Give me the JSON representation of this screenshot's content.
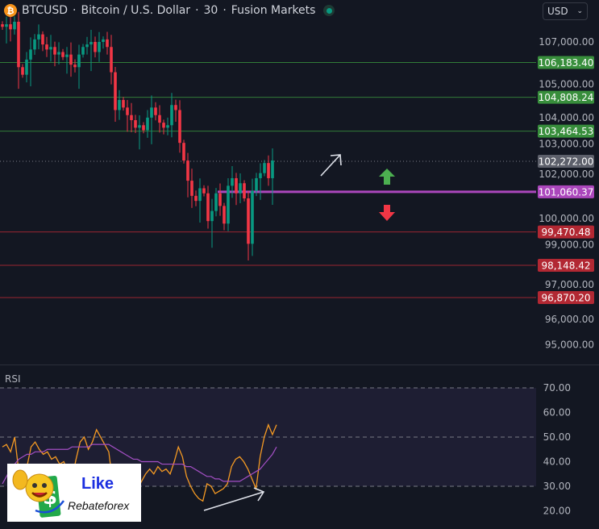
{
  "header": {
    "symbol": "BTCUSD",
    "name": "Bitcoin / U.S. Dollar",
    "interval": "30",
    "broker": "Fusion Markets",
    "separator": "·",
    "coin_icon": "bitcoin-icon",
    "status": "market-open-dot"
  },
  "currency_select": {
    "value": "USD"
  },
  "rsi_panel": {
    "label": "RSI"
  },
  "logo": {
    "line1": "Like",
    "line2": "Rebateforex"
  },
  "colors": {
    "up": "#089981",
    "down": "#f23645",
    "resistance": "#388e3c",
    "support": "#b22833",
    "pivot": "#ab47bc",
    "rsi": "#f59a23",
    "rsi_ma": "#a34fc4",
    "last": "#5d606b"
  },
  "chart_data": [
    {
      "type": "candlestick",
      "title": "BTCUSD · Bitcoin / U.S. Dollar · 30 · Fusion Markets",
      "ylim": [
        94500,
        108300
      ],
      "y_ticks": [
        "107,000.00",
        "105,000.00",
        "104,000.00",
        "103,000.00",
        "102,000.00",
        "100,000.00",
        "99,000.00",
        "97,000.00",
        "96,000.00",
        "95,000.00"
      ],
      "y_tick_values": [
        107000,
        105000,
        104000,
        103000,
        102000,
        100000,
        99000,
        97000,
        96000,
        95000
      ],
      "closes": [
        107600,
        107700,
        107500,
        107800,
        106000,
        105700,
        106300,
        106700,
        107100,
        107300,
        106900,
        106700,
        106800,
        106500,
        106600,
        106400,
        106500,
        106100,
        106000,
        106500,
        106800,
        106900,
        107000,
        106600,
        107000,
        107100,
        106800,
        105800,
        104300,
        104700,
        104400,
        104100,
        103900,
        103600,
        103700,
        103500,
        104000,
        104400,
        104100,
        103800,
        103600,
        103700,
        104500,
        104300,
        103000,
        102300,
        101500,
        100900,
        100700,
        101200,
        101000,
        99900,
        100300,
        101000,
        100500,
        99800,
        101300,
        101600,
        101000,
        101400,
        100800,
        99000,
        101100,
        101600,
        101800,
        102200,
        101600,
        102300
      ],
      "levels": [
        {
          "value": 106183.4,
          "label": "106,183.40",
          "kind": "resistance"
        },
        {
          "value": 104808.24,
          "label": "104,808.24",
          "kind": "resistance"
        },
        {
          "value": 103464.53,
          "label": "103,464.53",
          "kind": "resistance"
        },
        {
          "value": 102272.0,
          "label": "102,272.00",
          "kind": "last"
        },
        {
          "value": 101060.37,
          "label": "101,060.37",
          "kind": "pivot"
        },
        {
          "value": 99470.48,
          "label": "99,470.48",
          "kind": "support"
        },
        {
          "value": 98148.42,
          "label": "98,148.42",
          "kind": "support"
        },
        {
          "value": 96870.2,
          "label": "96,870.20",
          "kind": "support"
        }
      ],
      "annotations": [
        "arrow-up-right",
        "green-up-arrow",
        "red-down-arrow"
      ]
    },
    {
      "type": "line",
      "title": "RSI",
      "ylim": [
        17,
        73
      ],
      "y_ticks": [
        "70.00",
        "60.00",
        "50.00",
        "40.00",
        "30.00",
        "20.00"
      ],
      "y_tick_values": [
        70,
        60,
        50,
        40,
        30,
        20
      ],
      "band": [
        30,
        70
      ],
      "dashed_levels": [
        70,
        50,
        30
      ],
      "series": [
        {
          "values": [
            46,
            47,
            44,
            50,
            36,
            33,
            38,
            46,
            48,
            45,
            43,
            44,
            41,
            42,
            39,
            40,
            36,
            33,
            41,
            48,
            50,
            45,
            48,
            53,
            50,
            47,
            44,
            31,
            32,
            30,
            29,
            30,
            28,
            29,
            32,
            35,
            37,
            35,
            38,
            36,
            37,
            35,
            40,
            46,
            42,
            34,
            30,
            27,
            25,
            24,
            31,
            30,
            27,
            28,
            29,
            31,
            38,
            41,
            42,
            40,
            37,
            33,
            29,
            42,
            50,
            55,
            51,
            55
          ]
        },
        {
          "values": [
            31,
            34,
            37,
            39,
            41,
            42,
            43,
            43,
            44,
            44,
            44,
            45,
            45,
            45,
            45,
            45,
            45,
            46,
            46,
            46,
            46,
            46,
            47,
            47,
            47,
            47,
            47,
            46,
            45,
            44,
            43,
            42,
            41,
            41,
            40,
            40,
            40,
            40,
            40,
            39,
            39,
            39,
            39,
            39,
            39,
            38,
            38,
            37,
            36,
            35,
            34,
            34,
            33,
            33,
            32,
            32,
            32,
            32,
            32,
            33,
            34,
            35,
            36,
            37,
            39,
            41,
            43,
            46
          ]
        }
      ],
      "annotations": [
        "divergence-arrow"
      ]
    }
  ]
}
